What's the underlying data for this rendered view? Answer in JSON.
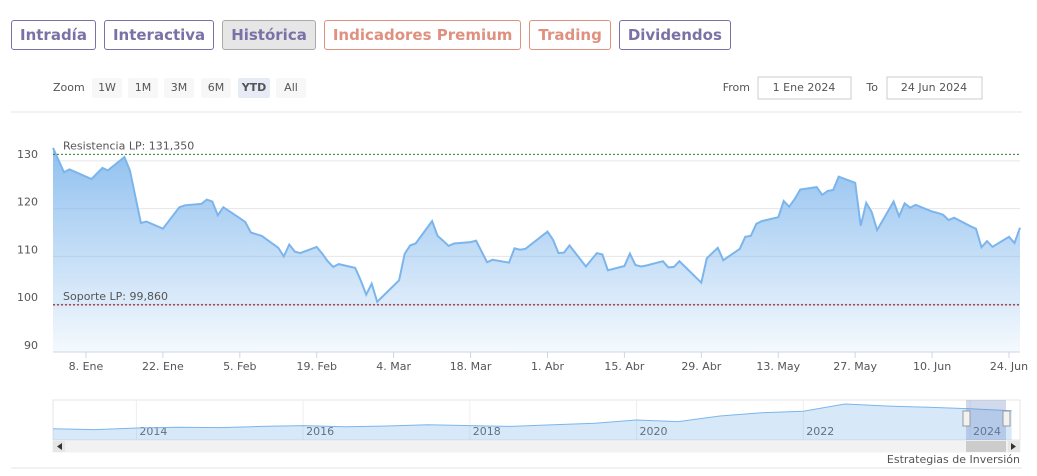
{
  "tabs": [
    {
      "label": "Intradía",
      "color": "#7a72a6",
      "active": false
    },
    {
      "label": "Interactiva",
      "color": "#7a72a6",
      "active": false
    },
    {
      "label": "Histórica",
      "color": "#7a72a6",
      "active": true
    },
    {
      "label": "Indicadores Premium",
      "color": "#e0907f",
      "active": false
    },
    {
      "label": "Trading",
      "color": "#e0907f",
      "active": false
    },
    {
      "label": "Dividendos",
      "color": "#7a72a6",
      "active": false
    }
  ],
  "range_selector": {
    "zoom_label": "Zoom",
    "buttons": [
      {
        "label": "1W",
        "active": false
      },
      {
        "label": "1M",
        "active": false
      },
      {
        "label": "3M",
        "active": false
      },
      {
        "label": "6M",
        "active": false
      },
      {
        "label": "YTD",
        "active": true
      },
      {
        "label": "All",
        "active": false
      }
    ],
    "from_label": "From",
    "from": "1 Ene 2024",
    "to_label": "To",
    "to": "24 Jun 2024"
  },
  "chart_data": {
    "type": "area",
    "color": "#7cb5ec",
    "x": [
      "2024-01-02",
      "2024-01-04",
      "2024-01-05",
      "2024-01-09",
      "2024-01-11",
      "2024-01-12",
      "2024-01-15",
      "2024-01-16",
      "2024-01-18",
      "2024-01-19",
      "2024-01-22",
      "2024-01-25",
      "2024-01-26",
      "2024-01-29",
      "2024-01-30",
      "2024-01-31",
      "2024-02-01",
      "2024-02-02",
      "2024-02-05",
      "2024-02-06",
      "2024-02-07",
      "2024-02-09",
      "2024-02-12",
      "2024-02-13",
      "2024-02-14",
      "2024-02-15",
      "2024-02-16",
      "2024-02-19",
      "2024-02-20",
      "2024-02-21",
      "2024-02-22",
      "2024-02-23",
      "2024-02-26",
      "2024-02-27",
      "2024-02-28",
      "2024-02-29",
      "2024-03-01",
      "2024-03-05",
      "2024-03-06",
      "2024-03-07",
      "2024-03-08",
      "2024-03-11",
      "2024-03-12",
      "2024-03-13",
      "2024-03-14",
      "2024-03-15",
      "2024-03-18",
      "2024-03-19",
      "2024-03-20",
      "2024-03-21",
      "2024-03-22",
      "2024-03-25",
      "2024-03-26",
      "2024-03-27",
      "2024-03-28",
      "2024-04-01",
      "2024-04-02",
      "2024-04-03",
      "2024-04-04",
      "2024-04-05",
      "2024-04-08",
      "2024-04-09",
      "2024-04-10",
      "2024-04-11",
      "2024-04-12",
      "2024-04-15",
      "2024-04-16",
      "2024-04-17",
      "2024-04-18",
      "2024-04-19",
      "2024-04-22",
      "2024-04-23",
      "2024-04-24",
      "2024-04-25",
      "2024-04-26",
      "2024-04-29",
      "2024-04-30",
      "2024-05-02",
      "2024-05-03",
      "2024-05-06",
      "2024-05-07",
      "2024-05-08",
      "2024-05-09",
      "2024-05-10",
      "2024-05-13",
      "2024-05-14",
      "2024-05-15",
      "2024-05-16",
      "2024-05-17",
      "2024-05-20",
      "2024-05-21",
      "2024-05-22",
      "2024-05-23",
      "2024-05-24",
      "2024-05-27",
      "2024-05-28",
      "2024-05-29",
      "2024-05-30",
      "2024-05-31",
      "2024-06-03",
      "2024-06-04",
      "2024-06-05",
      "2024-06-06",
      "2024-06-07",
      "2024-06-10",
      "2024-06-11",
      "2024-06-12",
      "2024-06-13",
      "2024-06-14",
      "2024-06-17",
      "2024-06-18",
      "2024-06-19",
      "2024-06-20",
      "2024-06-21",
      "2024-06-24",
      "2024-06-25",
      "2024-06-26"
    ],
    "values": [
      132.7,
      127.6,
      128.2,
      126.2,
      128.5,
      128.0,
      130.8,
      128.0,
      117.0,
      117.3,
      115.8,
      120.3,
      120.7,
      121.0,
      121.9,
      121.5,
      118.6,
      120.3,
      118.0,
      117.2,
      115.0,
      114.3,
      111.8,
      110.0,
      112.5,
      111.0,
      110.7,
      112.0,
      110.6,
      109.0,
      107.8,
      108.4,
      107.6,
      105.0,
      102.0,
      104.3,
      100.5,
      105.0,
      110.5,
      112.3,
      112.7,
      117.4,
      114.3,
      113.3,
      112.2,
      112.7,
      113.0,
      113.3,
      111.0,
      108.8,
      109.3,
      108.7,
      111.7,
      111.4,
      111.6,
      115.2,
      113.5,
      110.7,
      110.8,
      112.3,
      107.9,
      109.3,
      110.7,
      110.4,
      107.1,
      108.0,
      110.6,
      108.2,
      107.9,
      108.1,
      109.0,
      107.7,
      107.8,
      109.0,
      107.9,
      104.5,
      109.6,
      111.8,
      109.2,
      111.6,
      114.1,
      114.3,
      116.8,
      117.4,
      118.2,
      121.6,
      120.4,
      122.0,
      124.0,
      124.5,
      122.9,
      123.7,
      123.9,
      126.7,
      125.4,
      116.4,
      121.2,
      119.3,
      115.5,
      121.5,
      118.4,
      121.1,
      120.2,
      120.8,
      119.4,
      119.1,
      118.7,
      117.6,
      118.1,
      116.3,
      115.8,
      111.9,
      113.2,
      112.0,
      114.1,
      112.8,
      116.0
    ],
    "xlim": [
      "2024-01-02",
      "2024-06-26"
    ],
    "xticks": [
      {
        "value": "2024-01-08",
        "label": "8. Ene"
      },
      {
        "value": "2024-01-22",
        "label": "22. Ene"
      },
      {
        "value": "2024-02-05",
        "label": "5. Feb"
      },
      {
        "value": "2024-02-19",
        "label": "19. Feb"
      },
      {
        "value": "2024-03-04",
        "label": "4. Mar"
      },
      {
        "value": "2024-03-18",
        "label": "18. Mar"
      },
      {
        "value": "2024-04-01",
        "label": "1. Abr"
      },
      {
        "value": "2024-04-15",
        "label": "15. Abr"
      },
      {
        "value": "2024-04-29",
        "label": "29. Abr"
      },
      {
        "value": "2024-05-13",
        "label": "13. May"
      },
      {
        "value": "2024-05-27",
        "label": "27. May"
      },
      {
        "value": "2024-06-10",
        "label": "10. Jun"
      },
      {
        "value": "2024-06-24",
        "label": "24. Jun"
      }
    ],
    "ylim": [
      90,
      137.5
    ],
    "yticks": [
      90,
      100,
      110,
      120,
      130
    ],
    "grid": true,
    "plot_lines": [
      {
        "value": 131.35,
        "label": "Resistencia LP: 131,350",
        "color": "#2e7d32"
      },
      {
        "value": 99.86,
        "label": "Soporte LP: 99,860",
        "color": "#8b0000"
      }
    ]
  },
  "navigator": {
    "color": "#7cb5ec",
    "x": [
      2013,
      2013.5,
      2014,
      2014.5,
      2015,
      2015.5,
      2016,
      2016.5,
      2017,
      2017.5,
      2018,
      2018.5,
      2019,
      2019.5,
      2020,
      2020.5,
      2021,
      2021.5,
      2022,
      2022.5,
      2023,
      2023.5,
      2024,
      2024.5
    ],
    "values": [
      68,
      66,
      70,
      72,
      71,
      74,
      76,
      73,
      75,
      78,
      76,
      74,
      78,
      82,
      90,
      86,
      100,
      108,
      112,
      130,
      125,
      122,
      118,
      113
    ],
    "xlim": [
      2013,
      2024.6
    ],
    "ylim": [
      40,
      140
    ],
    "xticks": [
      2014,
      2016,
      2018,
      2020,
      2022,
      2024
    ]
  },
  "credit": "Estrategias de Inversión"
}
